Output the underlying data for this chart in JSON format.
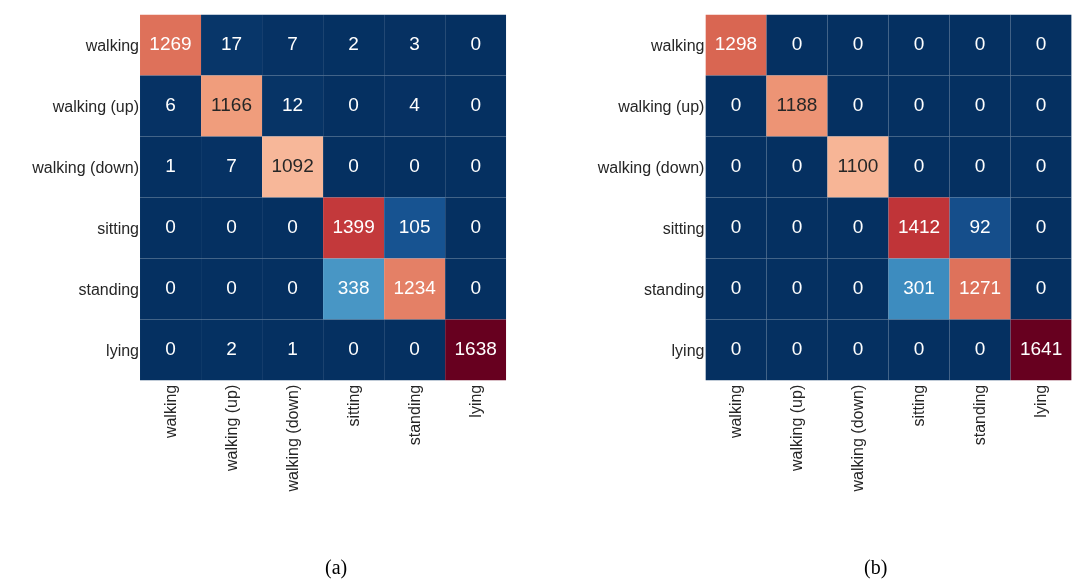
{
  "chart_data": [
    {
      "type": "heatmap",
      "categories": [
        "walking",
        "walking (up)",
        "walking (down)",
        "sitting",
        "standing",
        "lying"
      ],
      "y_categories": [
        "walking",
        "walking (up)",
        "walking (down)",
        "sitting",
        "standing",
        "lying"
      ],
      "cells": [
        [
          1269,
          17,
          7,
          2,
          3,
          0
        ],
        [
          6,
          1166,
          12,
          0,
          4,
          0
        ],
        [
          1,
          7,
          1092,
          0,
          0,
          0
        ],
        [
          0,
          0,
          0,
          1399,
          105,
          0
        ],
        [
          0,
          0,
          0,
          338,
          1234,
          0
        ],
        [
          0,
          2,
          1,
          0,
          0,
          1638
        ]
      ],
      "data_labels": true,
      "grid": false,
      "annotations": [
        "(a)"
      ]
    },
    {
      "type": "heatmap",
      "categories": [
        "walking",
        "walking (up)",
        "walking (down)",
        "sitting",
        "standing",
        "lying"
      ],
      "y_categories": [
        "walking",
        "walking (up)",
        "walking (down)",
        "sitting",
        "standing",
        "lying"
      ],
      "cells": [
        [
          1298,
          0,
          0,
          0,
          0,
          0
        ],
        [
          0,
          1188,
          0,
          0,
          0,
          0
        ],
        [
          0,
          0,
          1100,
          0,
          0,
          0
        ],
        [
          0,
          0,
          0,
          1412,
          92,
          0
        ],
        [
          0,
          0,
          0,
          301,
          1271,
          0
        ],
        [
          0,
          0,
          0,
          0,
          0,
          1641
        ]
      ],
      "data_labels": true,
      "grid": false,
      "annotations": [
        "(b)"
      ]
    }
  ]
}
